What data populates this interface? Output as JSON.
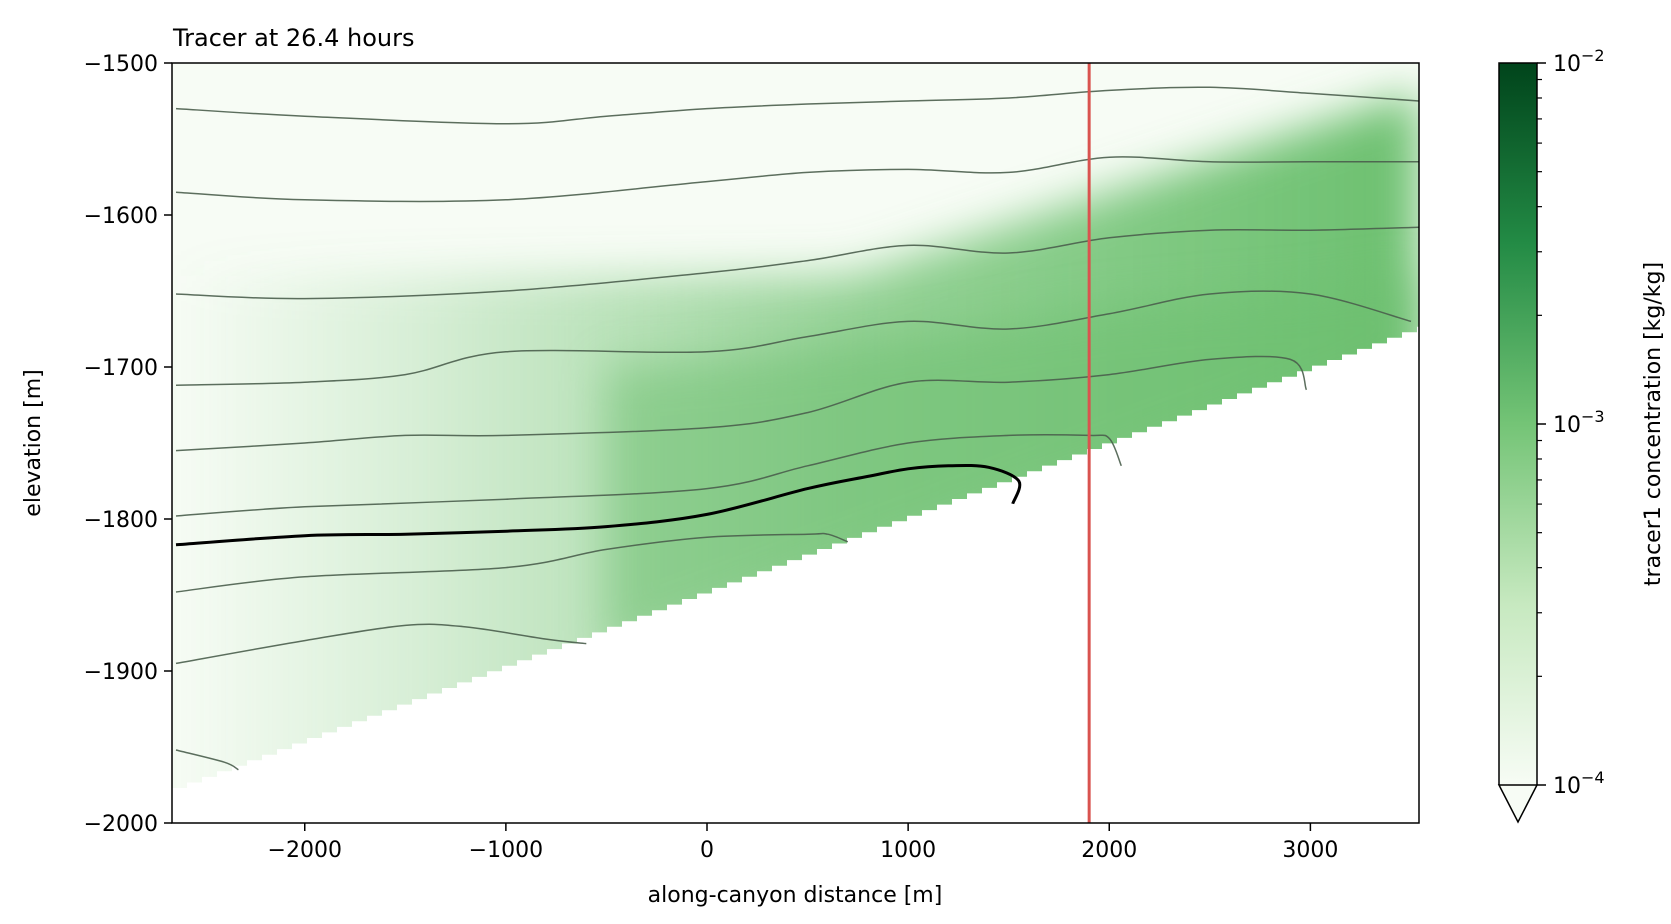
{
  "chart_data": {
    "type": "heatmap",
    "title": "Tracer at 26.4 hours",
    "xlabel": "along-canyon distance [m]",
    "ylabel": "elevation [m]",
    "xlim": [
      -2660,
      3540
    ],
    "ylim": [
      -2000,
      -1500
    ],
    "xticks": [
      -2000,
      -1000,
      0,
      1000,
      2000,
      3000
    ],
    "xtick_labels": [
      "−2000",
      "−1000",
      "0",
      "1000",
      "2000",
      "3000"
    ],
    "yticks": [
      -1500,
      -1600,
      -1700,
      -1800,
      -1900,
      -2000
    ],
    "ytick_labels": [
      "−1500",
      "−1600",
      "−1700",
      "−1800",
      "−1900",
      "−2000"
    ],
    "grid": false,
    "colormap": "Greens",
    "colorbar": {
      "label": "tracer1 concentration [kg/kg]",
      "scale": "log",
      "range": [
        0.0001,
        0.01
      ],
      "major_ticks": [
        0.0001,
        0.001,
        0.01
      ],
      "tick_bases": [
        "10",
        "10",
        "10"
      ],
      "tick_exponents": [
        "−4",
        "−3",
        "−2"
      ],
      "extend": "min"
    },
    "vertical_line": {
      "x": 1900,
      "color": "#d9534f"
    },
    "topography_boundary": {
      "x": [
        -2640,
        -2400,
        -2000,
        -1600,
        -1200,
        -800,
        -400,
        0,
        400,
        800,
        1200,
        1600,
        1900,
        2200,
        2600,
        3000,
        3300,
        3540
      ],
      "y": [
        -1976,
        -1960,
        -1930,
        -1900,
        -1872,
        -1845,
        -1817,
        -1790,
        -1770,
        -1815,
        -1797,
        -1790,
        -1778,
        -1765,
        -1736,
        -1714,
        -1690,
        -1673
      ]
    },
    "tracer_plume": {
      "description_values": "approximate log10 concentration along bands",
      "band_tops": [
        -1600,
        -1650,
        -1700
      ],
      "max_log10": -2.85
    },
    "density_contours": [
      {
        "x": [
          -2640,
          -2000,
          -1000,
          -500,
          0,
          500,
          1000,
          1500,
          2000,
          2500,
          3000,
          3540
        ],
        "y": [
          -1530,
          -1535,
          -1540,
          -1535,
          -1530,
          -1527,
          -1525,
          -1523,
          -1518,
          -1516,
          -1520,
          -1525
        ]
      },
      {
        "x": [
          -2640,
          -2000,
          -1000,
          0,
          500,
          1000,
          1500,
          2000,
          2500,
          3000,
          3540
        ],
        "y": [
          -1585,
          -1590,
          -1590,
          -1578,
          -1572,
          -1570,
          -1572,
          -1562,
          -1565,
          -1565,
          -1565
        ]
      },
      {
        "x": [
          -2640,
          -2000,
          -1000,
          0,
          500,
          1000,
          1500,
          2000,
          2500,
          3000,
          3540
        ],
        "y": [
          -1652,
          -1655,
          -1650,
          -1638,
          -1630,
          -1620,
          -1625,
          -1615,
          -1610,
          -1610,
          -1608
        ]
      },
      {
        "x": [
          -2640,
          -2000,
          -1500,
          -1000,
          0,
          500,
          1000,
          1500,
          2000,
          2500,
          3000,
          3500
        ],
        "y": [
          -1712,
          -1710,
          -1705,
          -1690,
          -1690,
          -1680,
          -1670,
          -1675,
          -1665,
          -1652,
          -1652,
          -1670
        ]
      },
      {
        "x": [
          -2640,
          -2000,
          -1500,
          -1000,
          0,
          500,
          1000,
          1500,
          2000,
          2500,
          2900,
          2980
        ],
        "y": [
          -1755,
          -1750,
          -1745,
          -1745,
          -1740,
          -1730,
          -1710,
          -1710,
          -1705,
          -1695,
          -1695,
          -1715
        ]
      },
      {
        "x": [
          -2640,
          -2000,
          -1000,
          0,
          500,
          1000,
          1500,
          1900,
          2000,
          2060
        ],
        "y": [
          -1798,
          -1792,
          -1787,
          -1780,
          -1765,
          -1750,
          -1745,
          -1745,
          -1747,
          -1765
        ]
      },
      {
        "x": [
          -2640,
          -2000,
          -1000,
          -500,
          0,
          500,
          600,
          700
        ],
        "y": [
          -1848,
          -1838,
          -1832,
          -1820,
          -1812,
          -1810,
          -1810,
          -1815
        ]
      },
      {
        "x": [
          -2640,
          -2000,
          -1500,
          -1200,
          -800,
          -600
        ],
        "y": [
          -1895,
          -1880,
          -1870,
          -1871,
          -1879,
          -1882
        ]
      },
      {
        "x": [
          -2640,
          -2400,
          -2330
        ],
        "y": [
          -1952,
          -1960,
          -1965
        ]
      }
    ],
    "bold_contour": {
      "x": [
        -2640,
        -2000,
        -1500,
        -1000,
        -500,
        0,
        500,
        800,
        1000,
        1200,
        1400,
        1550,
        1520
      ],
      "y": [
        -1817,
        -1811,
        -1810,
        -1808,
        -1805,
        -1797,
        -1780,
        -1772,
        -1767,
        -1765,
        -1766,
        -1775,
        -1790
      ]
    }
  }
}
